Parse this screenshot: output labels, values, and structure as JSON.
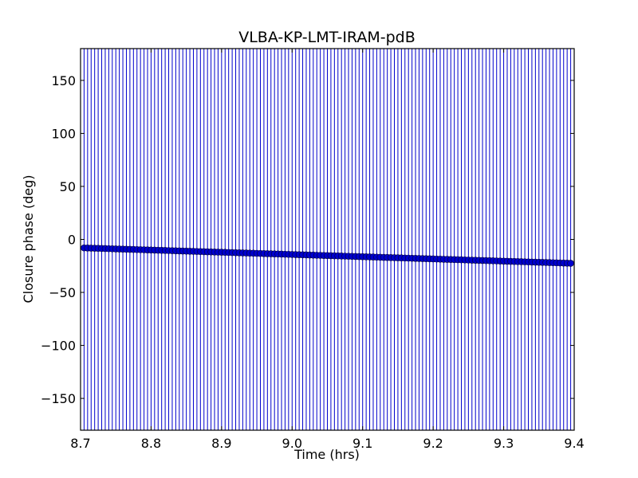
{
  "chart_data": {
    "type": "scatter",
    "title": "VLBA-KP-LMT-IRAM-pdB",
    "xlabel": "Time (hrs)",
    "ylabel": "Closure phase (deg)",
    "xlim": [
      8.7,
      9.4
    ],
    "ylim": [
      -180,
      180
    ],
    "xticks": [
      8.7,
      8.8,
      8.9,
      9.0,
      9.1,
      9.2,
      9.3,
      9.4
    ],
    "xtick_labels": [
      "8.7",
      "8.8",
      "8.9",
      "9.0",
      "9.1",
      "9.2",
      "9.3",
      "9.4"
    ],
    "yticks": [
      -150,
      -100,
      -50,
      0,
      50,
      100,
      150
    ],
    "ytick_labels": [
      "−150",
      "−100",
      "−50",
      "0",
      "50",
      "100",
      "150"
    ],
    "grid": false,
    "error_bars": "full range (-180 to 180) on every point",
    "series": [
      {
        "color": "#0000cc",
        "marker": "circle",
        "x_start": 8.705,
        "x_end": 9.395,
        "n_points": 139,
        "y_start": -8,
        "y_end": -22.5
      }
    ]
  }
}
